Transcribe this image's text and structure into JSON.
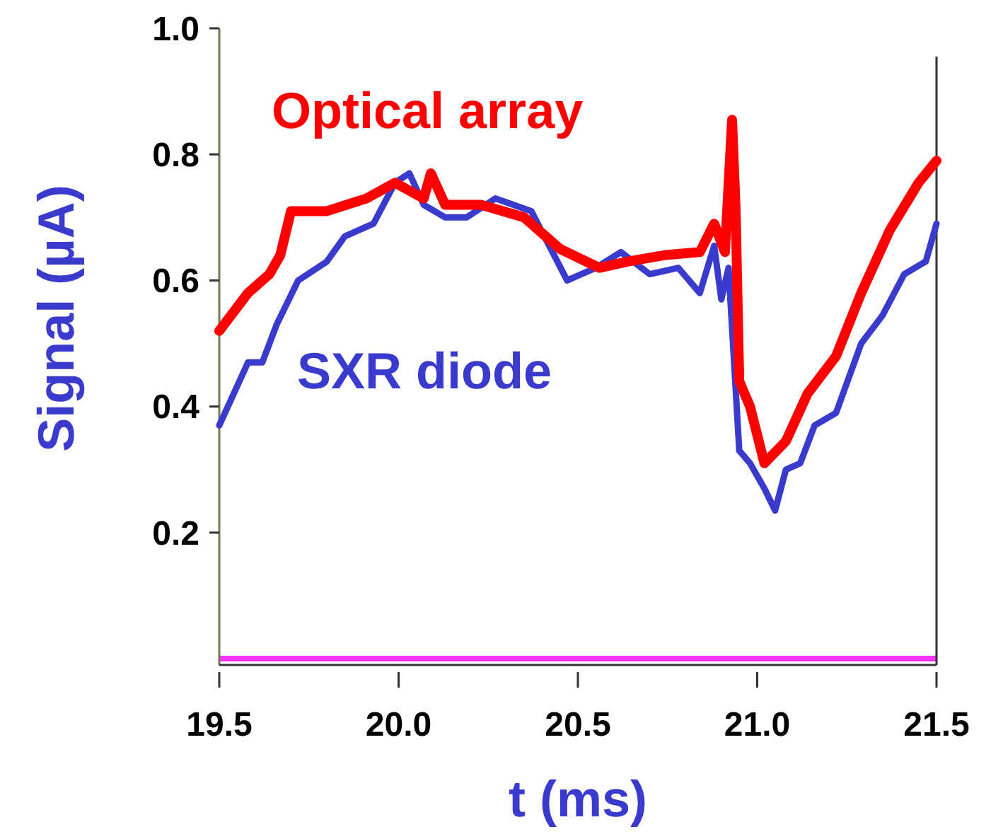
{
  "chart_data": {
    "type": "line",
    "xlabel": "t (ms)",
    "ylabel": "Signal (µA)",
    "xlim": [
      19.5,
      21.5
    ],
    "xticks": [
      {
        "value": 19.5,
        "label": "19.5"
      },
      {
        "value": 20,
        "label": "20.0"
      },
      {
        "value": 20.5,
        "label": "20.5"
      },
      {
        "value": 21,
        "label": "21.0"
      },
      {
        "value": 21.5,
        "label": "21.5"
      }
    ],
    "ylim": [
      -0.01,
      1
    ],
    "yticks": [
      {
        "value": 0.2,
        "label": "0.2"
      },
      {
        "value": 0.4,
        "label": "0.4"
      },
      {
        "value": 0.6,
        "label": "0.6"
      },
      {
        "value": 0.8,
        "label": "0.8"
      },
      {
        "value": 1,
        "label": "1.0"
      }
    ],
    "grid": false,
    "marker": "none",
    "line_style": "solid",
    "ref_lines": [
      {
        "axis": "y",
        "value": 0,
        "color": "#ff33ff"
      }
    ],
    "series": [
      {
        "name": "SXR diode",
        "color": "#3a3acc",
        "x": [
          19.5,
          19.58,
          19.62,
          19.66,
          19.72,
          19.8,
          19.85,
          19.93,
          19.99,
          20.03,
          20.07,
          20.13,
          20.19,
          20.27,
          20.37,
          20.47,
          20.55,
          20.62,
          20.7,
          20.78,
          20.84,
          20.88,
          20.9,
          20.92,
          20.95,
          20.98,
          21.02,
          21.05,
          21.08,
          21.12,
          21.16,
          21.22,
          21.29,
          21.35,
          21.41,
          21.47,
          21.5
        ],
        "values": [
          0.37,
          0.47,
          0.47,
          0.53,
          0.6,
          0.63,
          0.67,
          0.69,
          0.755,
          0.77,
          0.72,
          0.7,
          0.7,
          0.73,
          0.71,
          0.6,
          0.62,
          0.645,
          0.61,
          0.62,
          0.58,
          0.655,
          0.57,
          0.62,
          0.33,
          0.31,
          0.27,
          0.235,
          0.3,
          0.31,
          0.37,
          0.39,
          0.5,
          0.545,
          0.61,
          0.63,
          0.69
        ]
      },
      {
        "name": "Optical array",
        "color": "#ff0000",
        "x": [
          19.5,
          19.58,
          19.64,
          19.67,
          19.7,
          19.8,
          19.91,
          19.99,
          20.07,
          20.09,
          20.13,
          20.23,
          20.35,
          20.45,
          20.56,
          20.64,
          20.74,
          20.84,
          20.88,
          20.91,
          20.93,
          20.94,
          20.95,
          20.98,
          21.02,
          21.08,
          21.14,
          21.22,
          21.29,
          21.37,
          21.45,
          21.5
        ],
        "values": [
          0.52,
          0.58,
          0.61,
          0.64,
          0.71,
          0.71,
          0.73,
          0.755,
          0.73,
          0.77,
          0.72,
          0.72,
          0.7,
          0.65,
          0.62,
          0.63,
          0.64,
          0.645,
          0.69,
          0.645,
          0.855,
          0.71,
          0.44,
          0.4,
          0.31,
          0.345,
          0.42,
          0.48,
          0.58,
          0.68,
          0.755,
          0.79
        ]
      }
    ]
  }
}
